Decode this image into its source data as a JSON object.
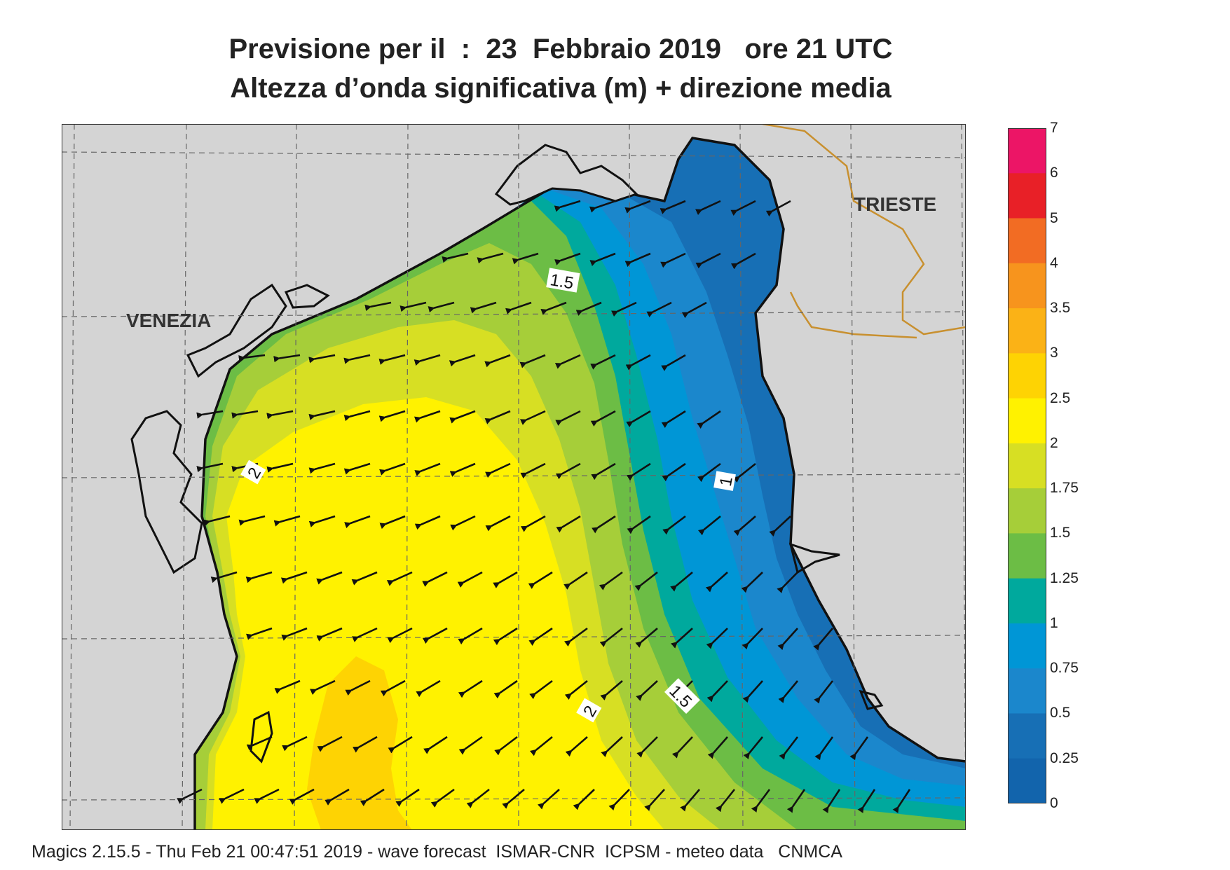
{
  "header": {
    "line1": "Previsione per il  :  23  Febbraio 2019   ore 21 UTC",
    "line2": "Altezza d’onda significativa (m) + direzione media"
  },
  "map": {
    "cities": [
      {
        "name": "VENEZIA"
      },
      {
        "name": "TRIESTE"
      }
    ],
    "contour_labels": [
      "1.5",
      "1",
      "2",
      "1.5",
      "2"
    ],
    "land_color": "#d4d4d4",
    "coast_color": "#111111"
  },
  "legend": {
    "labels": [
      "7",
      "6",
      "5",
      "4",
      "3.5",
      "3",
      "2.5",
      "2",
      "1.75",
      "1.5",
      "1.25",
      "1",
      "0.75",
      "0.5",
      "0.25",
      "0"
    ],
    "colors": [
      "#ec1566",
      "#e82027",
      "#f26c23",
      "#f7941d",
      "#fbb216",
      "#fed303",
      "#fff200",
      "#d7df23",
      "#a6ce39",
      "#6cbd45",
      "#00a99d",
      "#0096d6",
      "#1b87cc",
      "#176fb5",
      "#1264ac"
    ]
  },
  "footer": "Magics 2.15.5 - Thu Feb 21 00:47:51 2019 - wave forecast  ISMAR-CNR  ICPSM - meteo data   CNMCA"
}
